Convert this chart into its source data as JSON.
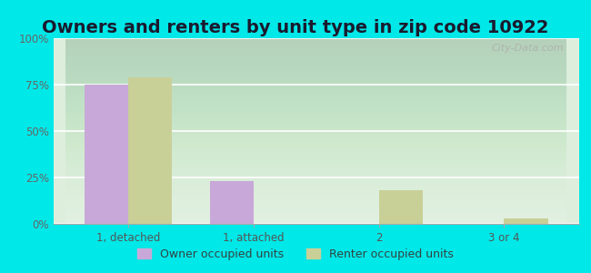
{
  "title": "Owners and renters by unit type in zip code 10922",
  "categories": [
    "1, detached",
    "1, attached",
    "2",
    "3 or 4"
  ],
  "owner_values": [
    75,
    23,
    0,
    0
  ],
  "renter_values": [
    79,
    0,
    18,
    3
  ],
  "owner_color": "#c8a8d8",
  "renter_color": "#c8d098",
  "background_color_top": "#e0f0e8",
  "background_color_bottom": "#d8ecd8",
  "outer_background": "#00e8e8",
  "ylim": [
    0,
    100
  ],
  "yticks": [
    0,
    25,
    50,
    75,
    100
  ],
  "ytick_labels": [
    "0%",
    "25%",
    "50%",
    "75%",
    "100%"
  ],
  "bar_width": 0.35,
  "legend_owner": "Owner occupied units",
  "legend_renter": "Renter occupied units",
  "watermark": "City-Data.com",
  "title_fontsize": 14,
  "axis_fontsize": 8.5,
  "legend_fontsize": 9
}
